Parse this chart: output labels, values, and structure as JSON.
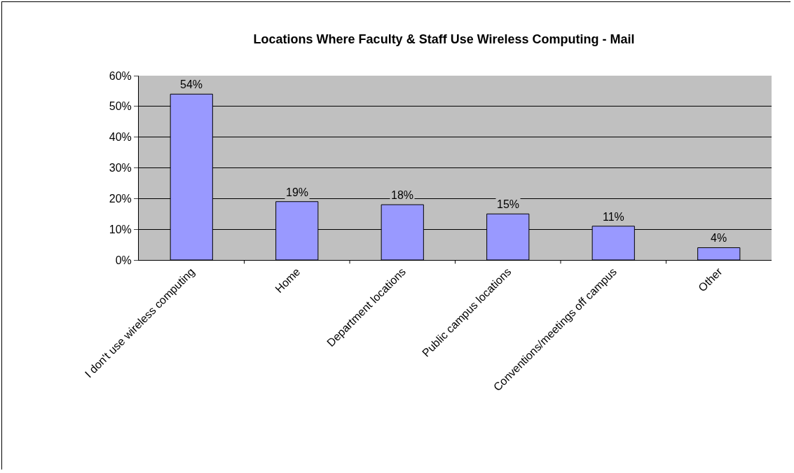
{
  "chart_data": {
    "type": "bar",
    "title": "Locations Where Faculty & Staff Use Wireless Computing - Mail",
    "categories": [
      "I don't use wireless computing",
      "Home",
      "Department locations",
      "Public campus locations",
      "Conventions/meetings off campus",
      "Other"
    ],
    "values": [
      54,
      19,
      18,
      15,
      11,
      4
    ],
    "value_labels": [
      "54%",
      "19%",
      "18%",
      "15%",
      "11%",
      "4%"
    ],
    "color": "#9999ff",
    "ylim": [
      0,
      60
    ],
    "yticks": [
      {
        "value": 0,
        "label": "0%"
      },
      {
        "value": 10,
        "label": "10%"
      },
      {
        "value": 20,
        "label": "20%"
      },
      {
        "value": 30,
        "label": "30%"
      },
      {
        "value": 40,
        "label": "40%"
      },
      {
        "value": 50,
        "label": "50%"
      },
      {
        "value": 60,
        "label": "60%"
      }
    ],
    "grid": "y",
    "legend": false
  }
}
